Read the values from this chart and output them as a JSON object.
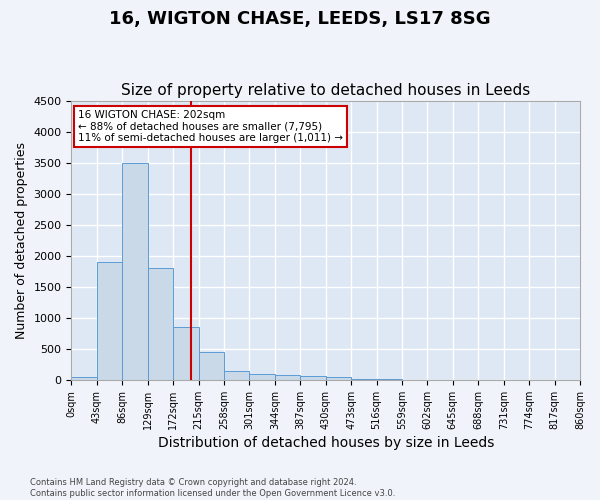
{
  "title": "16, WIGTON CHASE, LEEDS, LS17 8SG",
  "subtitle": "Size of property relative to detached houses in Leeds",
  "xlabel": "Distribution of detached houses by size in Leeds",
  "ylabel": "Number of detached properties",
  "bin_labels": [
    "0sqm",
    "43sqm",
    "86sqm",
    "129sqm",
    "172sqm",
    "215sqm",
    "258sqm",
    "301sqm",
    "344sqm",
    "387sqm",
    "430sqm",
    "473sqm",
    "516sqm",
    "559sqm",
    "602sqm",
    "645sqm",
    "688sqm",
    "731sqm",
    "774sqm",
    "817sqm",
    "860sqm"
  ],
  "bar_values": [
    50,
    1900,
    3500,
    1800,
    850,
    450,
    150,
    100,
    80,
    60,
    40,
    20,
    10,
    5,
    3,
    2,
    1,
    1,
    0,
    0
  ],
  "bar_color": "#c9d9e8",
  "bar_edge_color": "#5b9bd5",
  "vline_color": "#cc0000",
  "ylim": [
    0,
    4500
  ],
  "yticks": [
    0,
    500,
    1000,
    1500,
    2000,
    2500,
    3000,
    3500,
    4000,
    4500
  ],
  "property_label": "16 WIGTON CHASE: 202sqm",
  "annotation_line1": "← 88% of detached houses are smaller (7,795)",
  "annotation_line2": "11% of semi-detached houses are larger (1,011) →",
  "annotation_box_color": "#cc0000",
  "footer_line1": "Contains HM Land Registry data © Crown copyright and database right 2024.",
  "footer_line2": "Contains public sector information licensed under the Open Government Licence v3.0.",
  "bg_color": "#dde8f4",
  "grid_color": "#ffffff",
  "title_fontsize": 13,
  "subtitle_fontsize": 11,
  "xlabel_fontsize": 10,
  "ylabel_fontsize": 9
}
